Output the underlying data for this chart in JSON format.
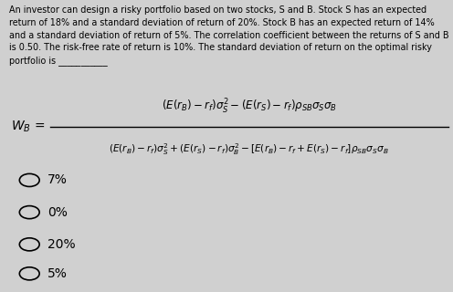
{
  "background_color": "#d0d0d0",
  "text_color": "#000000",
  "choices": [
    "7%",
    "0%",
    "20%",
    "5%"
  ]
}
